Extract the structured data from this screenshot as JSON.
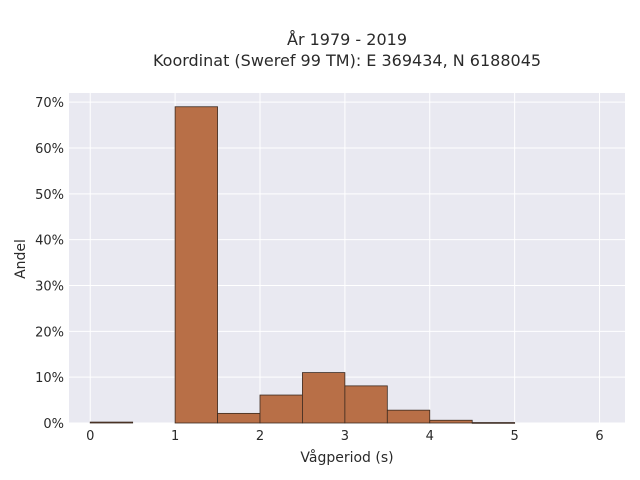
{
  "chart_data": {
    "type": "bar",
    "title_line1": "År 1979 - 2019",
    "title_line2": "Koordinat (Sweref 99 TM): E 369434, N 6188045",
    "xlabel": "Vågperiod (s)",
    "ylabel": "Andel",
    "xlim": [
      -0.25,
      6.3
    ],
    "ylim": [
      0,
      0.72
    ],
    "x_ticks": [
      0,
      1,
      2,
      3,
      4,
      5,
      6
    ],
    "y_ticks": [
      0,
      0.1,
      0.2,
      0.3,
      0.4,
      0.5,
      0.6,
      0.7
    ],
    "y_tick_labels": [
      "0%",
      "10%",
      "20%",
      "30%",
      "40%",
      "50%",
      "60%",
      "70%"
    ],
    "grid": true,
    "bins": [
      {
        "x0": 0.0,
        "x1": 0.5,
        "value": 0.002
      },
      {
        "x0": 0.5,
        "x1": 1.0,
        "value": 0.0
      },
      {
        "x0": 1.0,
        "x1": 1.5,
        "value": 0.69
      },
      {
        "x0": 1.5,
        "x1": 2.0,
        "value": 0.021
      },
      {
        "x0": 2.0,
        "x1": 2.5,
        "value": 0.061
      },
      {
        "x0": 2.5,
        "x1": 3.0,
        "value": 0.11
      },
      {
        "x0": 3.0,
        "x1": 3.5,
        "value": 0.081
      },
      {
        "x0": 3.5,
        "x1": 4.0,
        "value": 0.028
      },
      {
        "x0": 4.0,
        "x1": 4.5,
        "value": 0.006
      },
      {
        "x0": 4.5,
        "x1": 5.0,
        "value": 0.001
      }
    ],
    "colors": {
      "bar_fill": "#b86f47",
      "bar_stroke": "#3b2a20",
      "plot_bg": "#e9e9f1",
      "grid": "#ffffff"
    }
  }
}
